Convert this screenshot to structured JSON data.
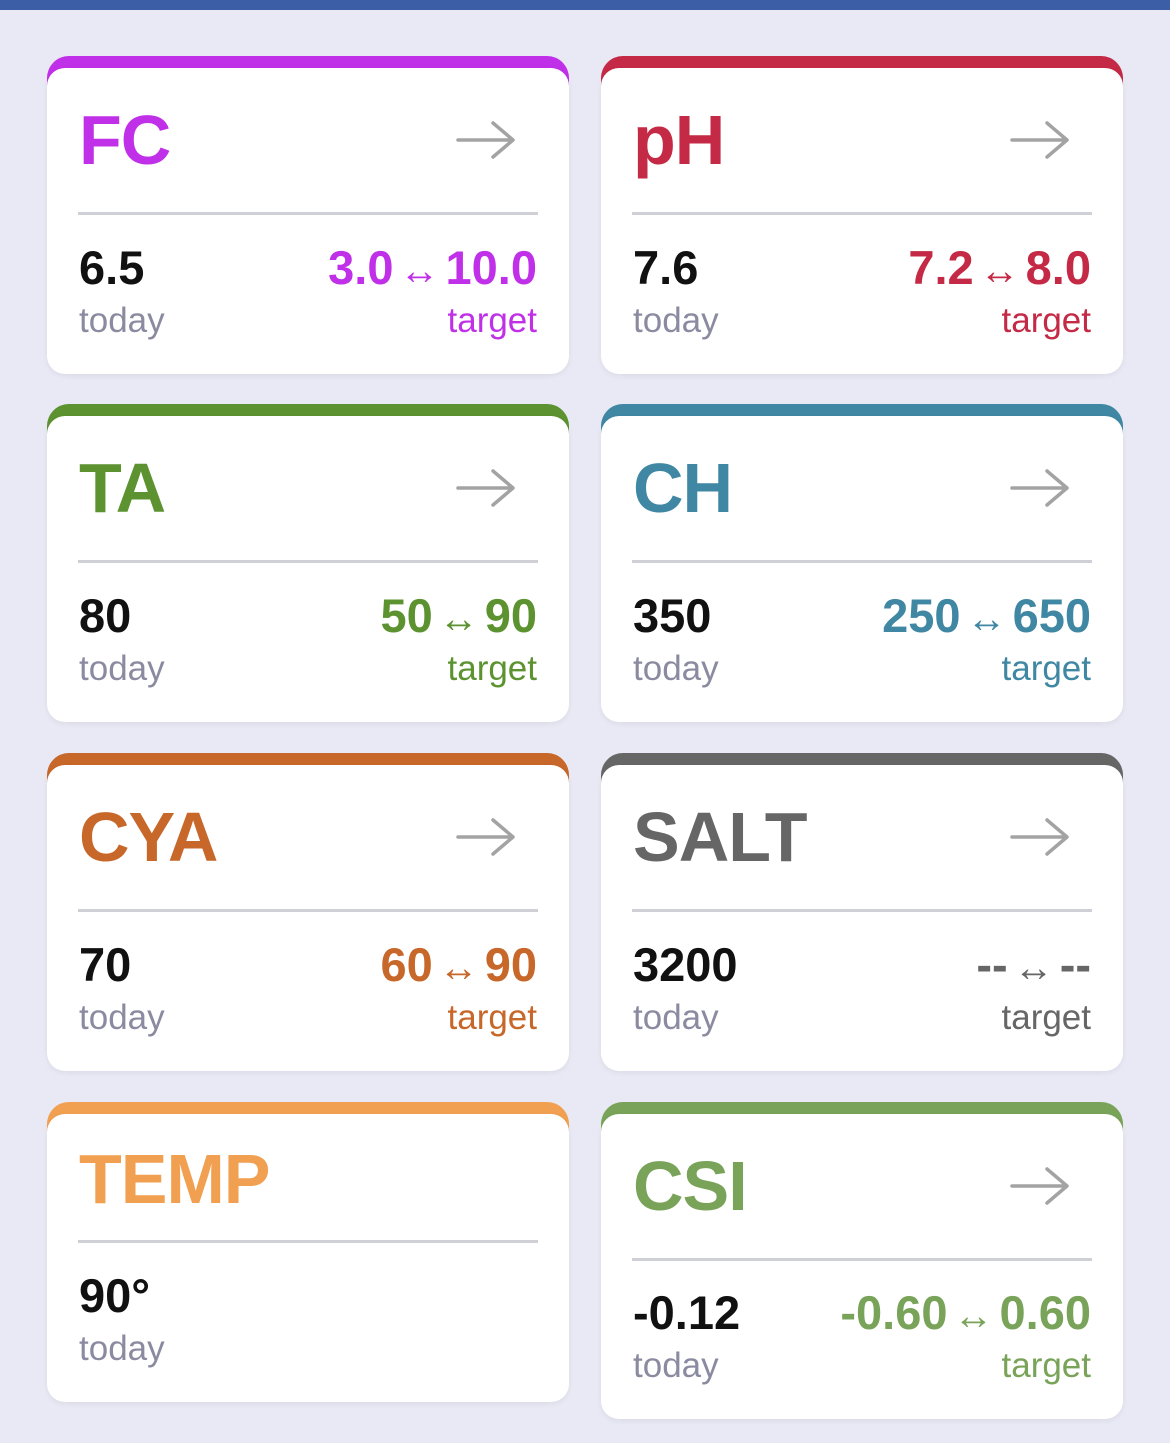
{
  "colors": {
    "header_bar": "#3b5ea6",
    "background": "#e8e9f4",
    "fc": "#c030e8",
    "ph": "#c42a45",
    "ta": "#5c9330",
    "ch": "#3f87a3",
    "cya": "#c7672a",
    "salt": "#666666",
    "temp": "#f0a050",
    "csi": "#78a358"
  },
  "icons": {
    "navigate": "right-arrow-icon",
    "range": "left-right-arrow"
  },
  "cards": {
    "fc": {
      "title": "FC",
      "today_value": "6.5",
      "today_label": "today",
      "target_min": "3.0",
      "range_symbol": "↔",
      "target_max": "10.0",
      "target_label": "target"
    },
    "ph": {
      "title": "pH",
      "today_value": "7.6",
      "today_label": "today",
      "target_min": "7.2",
      "range_symbol": "↔",
      "target_max": "8.0",
      "target_label": "target"
    },
    "ta": {
      "title": "TA",
      "today_value": "80",
      "today_label": "today",
      "target_min": "50",
      "range_symbol": "↔",
      "target_max": "90",
      "target_label": "target"
    },
    "ch": {
      "title": "CH",
      "today_value": "350",
      "today_label": "today",
      "target_min": "250",
      "range_symbol": "↔",
      "target_max": "650",
      "target_label": "target"
    },
    "cya": {
      "title": "CYA",
      "today_value": "70",
      "today_label": "today",
      "target_min": "60",
      "range_symbol": "↔",
      "target_max": "90",
      "target_label": "target"
    },
    "salt": {
      "title": "SALT",
      "today_value": "3200",
      "today_label": "today",
      "target_min": "--",
      "range_symbol": "↔",
      "target_max": "--",
      "target_label": "target"
    },
    "temp": {
      "title": "TEMP",
      "today_value": "90°",
      "today_label": "today"
    },
    "csi": {
      "title": "CSI",
      "today_value": "-0.12",
      "today_label": "today",
      "target_min": "-0.60",
      "range_symbol": "↔",
      "target_max": "0.60",
      "target_label": "target"
    }
  }
}
